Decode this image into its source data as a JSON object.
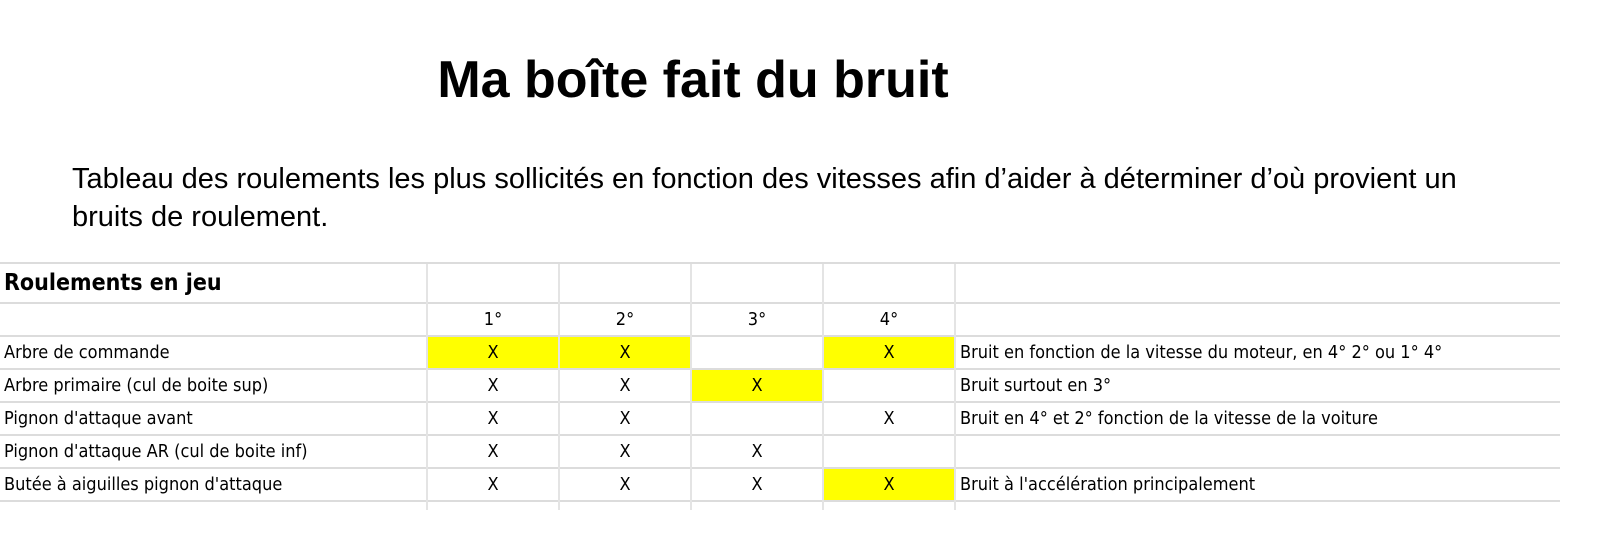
{
  "title": "Ma boîte fait du bruit",
  "intro": "Tableau des roulements les plus sollicités en fonction des vitesses afin d’aider à déterminer d’où provient un bruits de roulement.",
  "highlight_color": "#ffff00",
  "table": {
    "header": "Roulements en jeu",
    "gears": [
      "1°",
      "2°",
      "3°",
      "4°"
    ],
    "rows": [
      {
        "label": "Arbre de commande",
        "cells": [
          "X",
          "X",
          "",
          "X"
        ],
        "highlight": [
          true,
          true,
          false,
          true
        ],
        "comment": "Bruit en fonction de la vitesse du moteur, en 4° 2° ou 1° 4°"
      },
      {
        "label": "Arbre primaire (cul de boite sup)",
        "cells": [
          "X",
          "X",
          "X",
          ""
        ],
        "highlight": [
          false,
          false,
          true,
          false
        ],
        "comment": "Bruit surtout en 3°"
      },
      {
        "label": "Pignon d'attaque avant",
        "cells": [
          "X",
          "X",
          "",
          "X"
        ],
        "highlight": [
          false,
          false,
          false,
          false
        ],
        "comment": "Bruit en 4° et 2° fonction de la vitesse de la voiture"
      },
      {
        "label": "Pignon d'attaque AR (cul de boite inf)",
        "cells": [
          "X",
          "X",
          "X",
          ""
        ],
        "highlight": [
          false,
          false,
          false,
          false
        ],
        "comment": ""
      },
      {
        "label": "Butée à aiguilles pignon d'attaque",
        "cells": [
          "X",
          "X",
          "X",
          "X"
        ],
        "highlight": [
          false,
          false,
          false,
          true
        ],
        "comment": "Bruit à l'accélération principalement"
      }
    ]
  }
}
